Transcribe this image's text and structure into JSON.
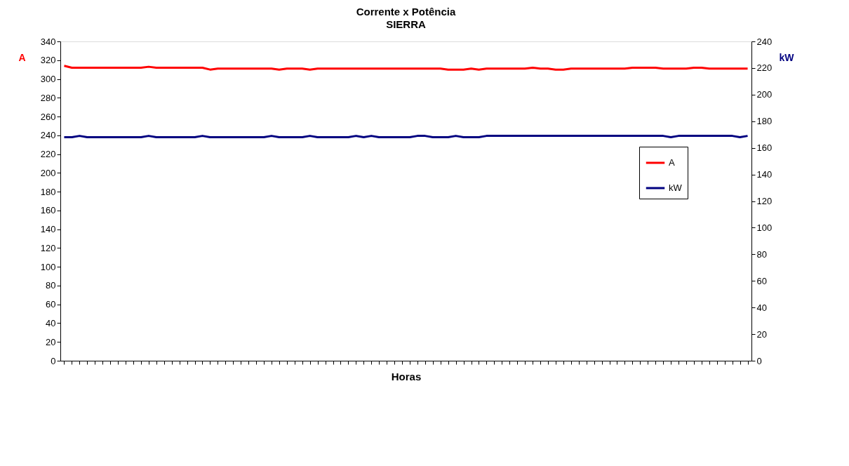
{
  "chart_data": {
    "type": "line",
    "title": "Corrente x Potência",
    "subtitle": "SIERRA",
    "xlabel": "Horas",
    "ylabel": "A",
    "y2label": "kW",
    "categories": [
      null,
      null,
      null,
      null,
      null,
      null,
      null,
      null,
      null,
      null,
      null,
      null,
      null,
      null,
      null,
      null,
      null,
      null,
      null,
      null,
      null,
      null,
      null,
      null,
      null,
      null,
      null,
      null,
      null,
      null,
      null,
      null,
      null,
      null,
      null,
      null,
      null,
      null,
      null,
      null,
      null,
      null,
      null,
      null,
      null,
      null,
      null,
      null,
      null,
      null,
      null,
      null,
      null,
      null,
      null,
      null,
      null,
      null,
      null,
      null,
      null,
      null,
      null,
      null,
      null,
      null,
      null,
      null,
      null,
      null,
      null,
      null,
      null,
      null,
      null,
      null,
      null,
      null,
      null,
      null,
      null,
      null,
      null,
      null,
      null,
      null,
      null,
      null,
      null,
      null
    ],
    "series": [
      {
        "name": "A",
        "color": "#ff0000",
        "values": [
          314,
          312,
          312,
          312,
          312,
          312,
          312,
          312,
          312,
          312,
          312,
          313,
          312,
          312,
          312,
          312,
          312,
          312,
          312,
          310,
          311,
          311,
          311,
          311,
          311,
          311,
          311,
          311,
          310,
          311,
          311,
          311,
          310,
          311,
          311,
          311,
          311,
          311,
          311,
          311,
          311,
          311,
          311,
          311,
          311,
          311,
          311,
          311,
          311,
          311,
          310,
          310,
          310,
          311,
          310,
          311,
          311,
          311,
          311,
          311,
          311,
          312,
          311,
          311,
          310,
          310,
          311,
          311,
          311,
          311,
          311,
          311,
          311,
          311,
          312,
          312,
          312,
          312,
          311,
          311,
          311,
          311,
          312,
          312,
          311,
          311,
          311,
          311,
          311,
          311
        ]
      },
      {
        "name": "kW",
        "color": "#000080",
        "axis": "y2",
        "values": [
          168,
          168,
          169,
          168,
          168,
          168,
          168,
          168,
          168,
          168,
          168,
          169,
          168,
          168,
          168,
          168,
          168,
          168,
          169,
          168,
          168,
          168,
          168,
          168,
          168,
          168,
          168,
          169,
          168,
          168,
          168,
          168,
          169,
          168,
          168,
          168,
          168,
          168,
          169,
          168,
          169,
          168,
          168,
          168,
          168,
          168,
          169,
          169,
          168,
          168,
          168,
          169,
          168,
          168,
          168,
          169,
          169,
          169,
          169,
          169,
          169,
          169,
          169,
          169,
          169,
          169,
          169,
          169,
          169,
          169,
          169,
          169,
          169,
          169,
          169,
          169,
          169,
          169,
          169,
          168,
          169,
          169,
          169,
          169,
          169,
          169,
          169,
          169,
          168,
          169
        ]
      }
    ],
    "ylim": [
      0,
      340
    ],
    "yticks": [
      0,
      20,
      40,
      60,
      80,
      100,
      120,
      140,
      160,
      180,
      200,
      220,
      240,
      260,
      280,
      300,
      320,
      340
    ],
    "y2lim": [
      0,
      240
    ],
    "y2ticks": [
      0,
      20,
      40,
      60,
      80,
      100,
      120,
      140,
      160,
      180,
      200,
      220,
      240
    ],
    "grid": false,
    "legend": "right",
    "tick_labels": "y",
    "marker": "none",
    "line_style": "solid"
  }
}
